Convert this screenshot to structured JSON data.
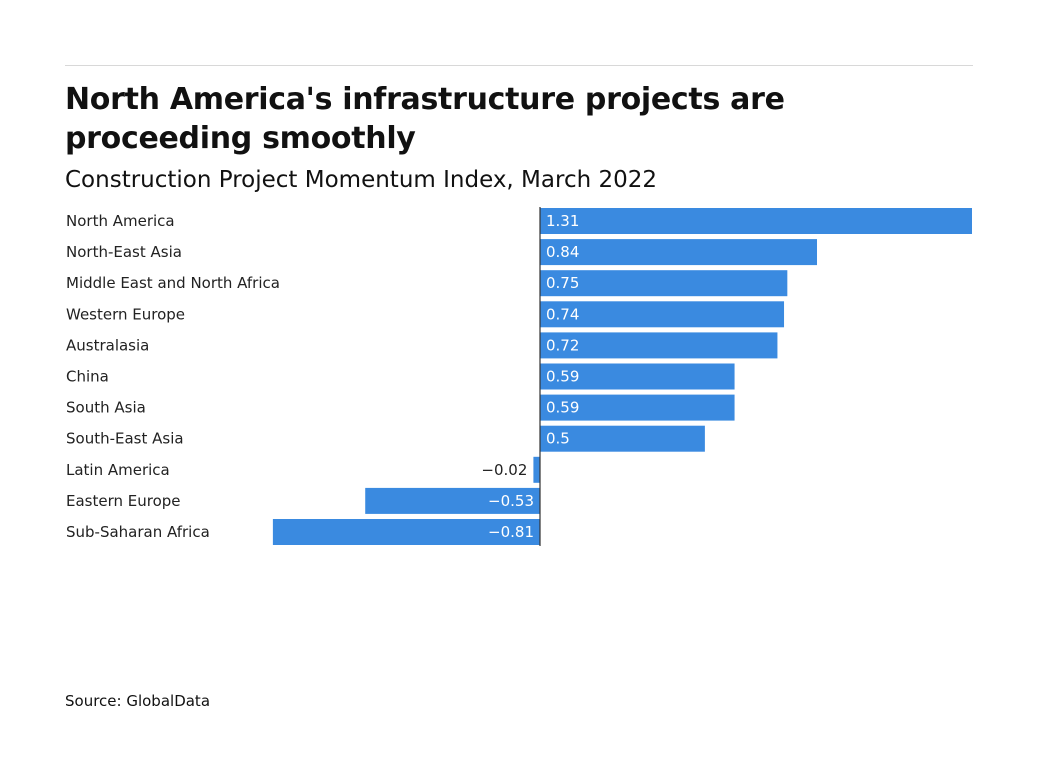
{
  "title": "North America's infrastructure projects are proceeding smoothly",
  "subtitle": "Construction Project Momentum Index, March 2022",
  "source": "Source: GlobalData",
  "colors": {
    "bar": "#3a8ae0",
    "axis": "#333333"
  },
  "chart_data": {
    "type": "bar",
    "orientation": "horizontal",
    "title": "North America's infrastructure projects are proceeding smoothly",
    "subtitle": "Construction Project Momentum Index, March 2022",
    "categories": [
      "North America",
      "North-East Asia",
      "Middle East and North Africa",
      "Western Europe",
      "Australasia",
      "China",
      "South Asia",
      "South-East Asia",
      "Latin America",
      "Eastern Europe",
      "Sub-Saharan Africa"
    ],
    "values": [
      1.31,
      0.84,
      0.75,
      0.74,
      0.72,
      0.59,
      0.59,
      0.5,
      -0.02,
      -0.53,
      -0.81
    ],
    "labels": [
      "1.31",
      "0.84",
      "0.75",
      "0.74",
      "0.72",
      "0.59",
      "0.59",
      "0.5",
      "−0.02",
      "−0.53",
      "−0.81"
    ],
    "xlim": [
      -0.81,
      1.31
    ],
    "grid": false,
    "legend": "none"
  }
}
